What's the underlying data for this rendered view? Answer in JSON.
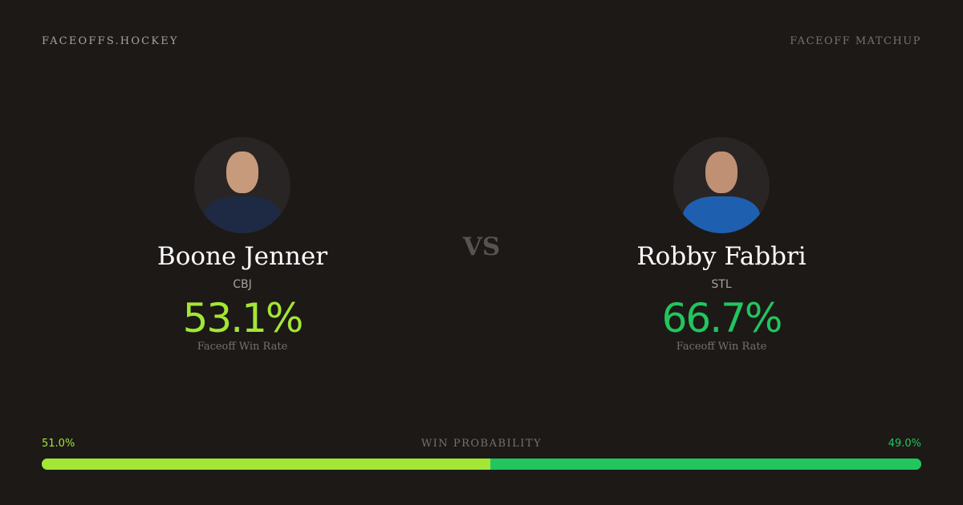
{
  "brand": "FACEOFFS.HOCKEY",
  "page_tag": "FACEOFF MATCHUP",
  "vs": "VS",
  "players": [
    {
      "name": "Boone Jenner",
      "team": "CBJ",
      "win_rate": "53.1%",
      "win_rate_label": "Faceoff Win Rate",
      "color": "#a3e635",
      "jersey_color": "#1e2a44"
    },
    {
      "name": "Robby Fabbri",
      "team": "STL",
      "win_rate": "66.7%",
      "win_rate_label": "Faceoff Win Rate",
      "color": "#22c55e",
      "jersey_color": "#1f5fb0"
    }
  ],
  "win_probability": {
    "label": "WIN PROBABILITY",
    "left": "51.0%",
    "right": "49.0%",
    "left_value": 51.0,
    "right_value": 49.0
  }
}
